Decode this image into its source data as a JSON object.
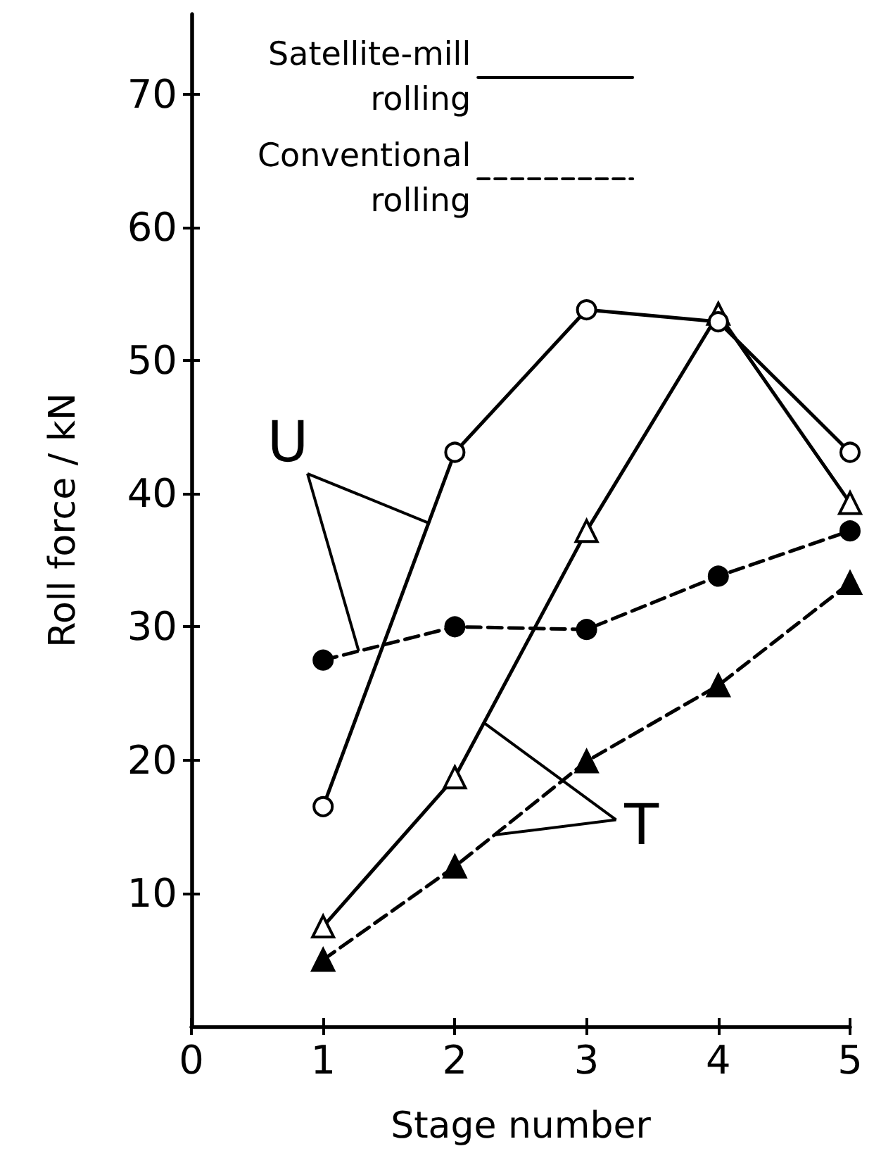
{
  "chart_data": {
    "type": "line",
    "xlabel": "Stage number",
    "ylabel": "Roll force / kN",
    "x": [
      1,
      2,
      3,
      4,
      5
    ],
    "series": [
      {
        "name": "Satellite-mill rolling",
        "color": "#000000",
        "marker": "circle",
        "line_style": "solid",
        "values": [
          16.5,
          43.1,
          53.8,
          52.9,
          43.1
        ]
      },
      {
        "color": "#000000",
        "marker": "triangle",
        "line_style": "solid",
        "values": [
          7.5,
          18.7,
          37.2,
          53.5,
          39.3
        ]
      },
      {
        "name": "Conventional rolling",
        "color": "#000000",
        "marker": "circle",
        "line_style": "dashed",
        "values": [
          27.5,
          30,
          29.8,
          33.8,
          37.2
        ]
      },
      {
        "color": "#000000",
        "marker": "triangle",
        "line_style": "dashed",
        "values": [
          5,
          12,
          19.9,
          25.6,
          33.3
        ]
      }
    ],
    "annotations": [
      {
        "text": "U",
        "x": 1.8,
        "y": 37.8
      },
      {
        "text": "T",
        "x": 2.22,
        "y": 22.8
      }
    ],
    "xlim": [
      0,
      5
    ],
    "xticks": [
      0,
      1,
      2,
      3,
      4,
      5
    ],
    "ylim": [
      0,
      76
    ],
    "yticks": [
      10,
      20,
      30,
      40,
      50,
      60,
      70
    ],
    "grid": false,
    "legend": "top left"
  }
}
